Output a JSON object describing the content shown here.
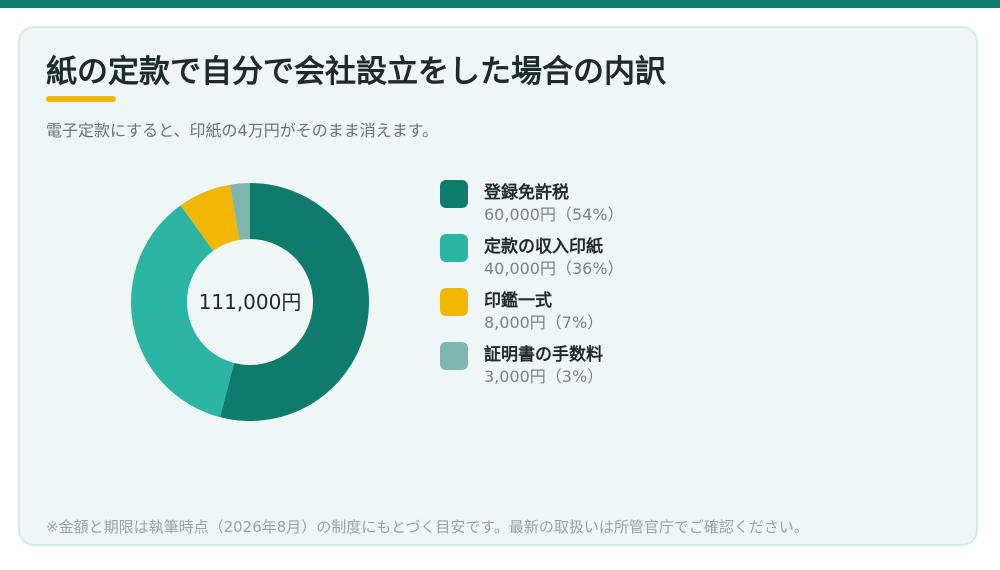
{
  "header": {
    "title": "紙の定款で自分で会社設立をした場合の内訳",
    "subtitle": "電子定款にすると、印紙の4万円がそのまま消えます。"
  },
  "colors": {
    "top_bar": "#0f7b6c",
    "accent": "#f2b705",
    "card_bg": "#eef7f5"
  },
  "chart_data": {
    "type": "pie",
    "variant": "donut",
    "center_label": "111,000円",
    "slices": [
      {
        "name": "登録免許税",
        "value": 60000,
        "value_label": "60,000円（54%）",
        "color": "#0f7b6c"
      },
      {
        "name": "定款の収入印紙",
        "value": 40000,
        "value_label": "40,000円（36%）",
        "color": "#2cb5a2"
      },
      {
        "name": "印鑑一式",
        "value": 8000,
        "value_label": "8,000円（7%）",
        "color": "#f2b705"
      },
      {
        "name": "証明書の手数料",
        "value": 3000,
        "value_label": "3,000円（3%）",
        "color": "#7fb6ae"
      }
    ],
    "legend_position": "right"
  },
  "footer": {
    "note": "※金額と期限は執筆時点（2026年8月）の制度にもとづく目安です。最新の取扱いは所管官庁でご確認ください。"
  }
}
